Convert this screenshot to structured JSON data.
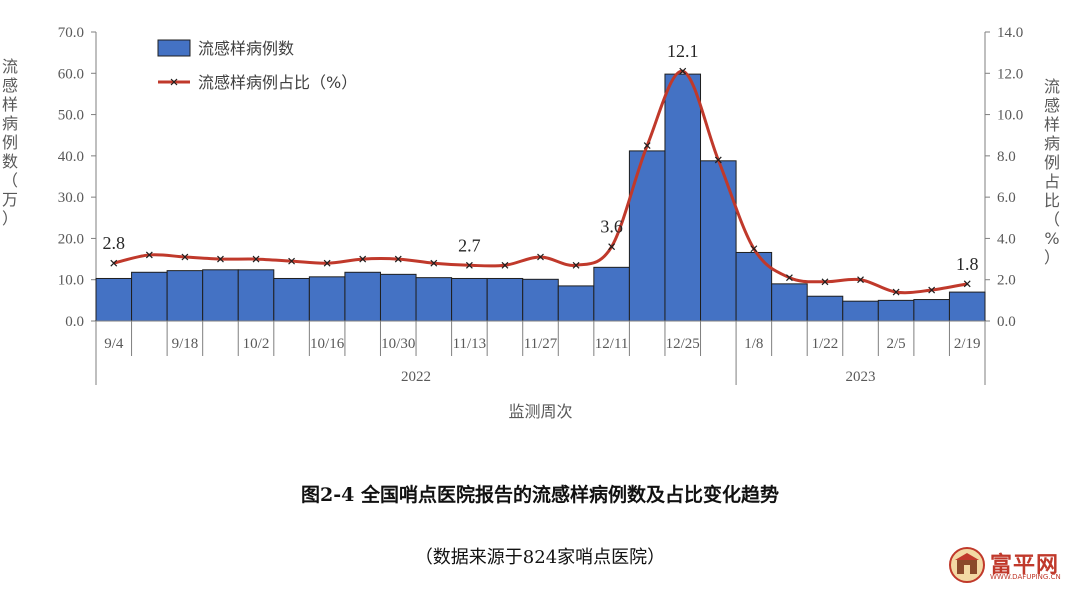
{
  "chart_data": {
    "type": "bar+line",
    "x_ticks": [
      "9/4",
      "9/18",
      "10/2",
      "10/16",
      "10/30",
      "11/13",
      "11/27",
      "12/11",
      "12/25",
      "1/8",
      "1/22",
      "2/5",
      "2/19"
    ],
    "year_labels": [
      "2022",
      "2023"
    ],
    "xlabel": "监测周次",
    "ylabel_left": "流感样病例数（万）",
    "ylabel_right": "流感样病例占比（%）",
    "ylim_left": [
      0,
      70
    ],
    "ylim_right": [
      0,
      14
    ],
    "yticks_left": [
      "0.0",
      "10.0",
      "20.0",
      "30.0",
      "40.0",
      "50.0",
      "60.0",
      "70.0"
    ],
    "yticks_right": [
      "0.0",
      "2.0",
      "4.0",
      "6.0",
      "8.0",
      "10.0",
      "12.0",
      "14.0"
    ],
    "series": [
      {
        "name": "流感样病例数",
        "type": "bar",
        "axis": "left",
        "color": "#4472c4",
        "values": [
          10.3,
          11.8,
          12.2,
          12.4,
          12.4,
          10.3,
          10.7,
          11.8,
          11.3,
          10.5,
          10.3,
          10.3,
          10.1,
          8.5,
          13.0,
          41.2,
          59.8,
          38.8,
          16.6,
          9.0,
          6.0,
          4.8,
          5.0,
          5.2,
          7.0
        ]
      },
      {
        "name": "流感样病例占比（%）",
        "type": "line",
        "axis": "right",
        "color": "#c0392b",
        "values": [
          2.8,
          3.2,
          3.1,
          3.0,
          3.0,
          2.9,
          2.8,
          3.0,
          3.0,
          2.8,
          2.7,
          2.7,
          3.1,
          2.7,
          3.6,
          8.5,
          12.1,
          7.8,
          3.5,
          2.1,
          1.9,
          2.0,
          1.4,
          1.5,
          1.8
        ]
      }
    ],
    "data_labels": [
      {
        "index": 0,
        "text": "2.8"
      },
      {
        "index": 10,
        "text": "2.7"
      },
      {
        "index": 14,
        "text": "3.6"
      },
      {
        "index": 16,
        "text": "12.1"
      },
      {
        "index": 24,
        "text": "1.8"
      }
    ],
    "legend": "top-left"
  },
  "caption": {
    "title": "图2-4 全国哨点医院报告的流感样病例数及占比变化趋势",
    "subtitle": "（数据来源于824家哨点医院）"
  },
  "watermark": {
    "text": "富平网",
    "url": "WWW.DAFUPING.CN"
  }
}
